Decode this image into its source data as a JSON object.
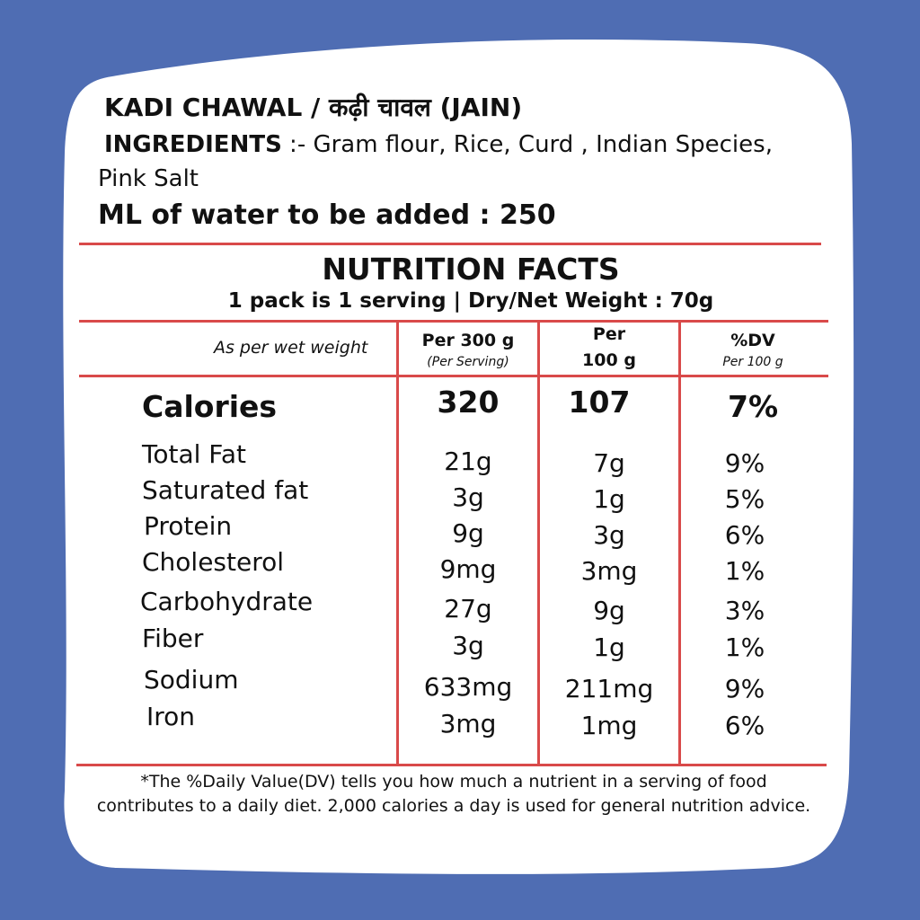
{
  "product": {
    "title": "KADI CHAWAL / कढ़ी चावल (JAIN)",
    "ingredients_label": "INGREDIENTS",
    "ingredients_text_line1": " :- Gram flour, Rice, Curd , Indian Species,",
    "ingredients_text_line2": "Pink Salt",
    "water_text": "ML of water to be added : 250"
  },
  "nutrition": {
    "title": "NUTRITION FACTS",
    "serving_info": "1 pack is 1 serving | Dry/Net  Weight : 70g",
    "basis_note": "As per wet weight",
    "columns": [
      {
        "label": "Per 300 g",
        "sub": "(Per Serving)"
      },
      {
        "label_line1": "Per",
        "label_line2": "100 g"
      },
      {
        "label": "%DV",
        "sub": "Per 100 g"
      }
    ],
    "calories": {
      "label": "Calories",
      "per_serving": "320",
      "per_100g": "107",
      "dv": "7%"
    },
    "rows": [
      {
        "label": "Total Fat",
        "per_serving": "21g",
        "per_100g": "7g",
        "dv": "9%"
      },
      {
        "label": "Saturated fat",
        "per_serving": "3g",
        "per_100g": "1g",
        "dv": "5%"
      },
      {
        "label": "Protein",
        "per_serving": "9g",
        "per_100g": "3g",
        "dv": "6%"
      },
      {
        "label": "Cholesterol",
        "per_serving": "9mg",
        "per_100g": "3mg",
        "dv": "1%"
      },
      {
        "label": "Carbohydrate",
        "per_serving": "27g",
        "per_100g": "9g",
        "dv": "3%"
      },
      {
        "label": "Fiber",
        "per_serving": "3g",
        "per_100g": "1g",
        "dv": "1%"
      },
      {
        "label": "Sodium",
        "per_serving": "633mg",
        "per_100g": "211mg",
        "dv": "9%"
      },
      {
        "label": "Iron",
        "per_serving": "3mg",
        "per_100g": "1mg",
        "dv": "6%"
      }
    ],
    "footnote": "*The %Daily Value(DV) tells you how much a nutrient in a serving of food contributes to a daily diet. 2,000 calories a day is used for general nutrition advice."
  },
  "colors": {
    "background": "#4f6db3",
    "card": "#ffffff",
    "rule": "#d94a4a"
  }
}
